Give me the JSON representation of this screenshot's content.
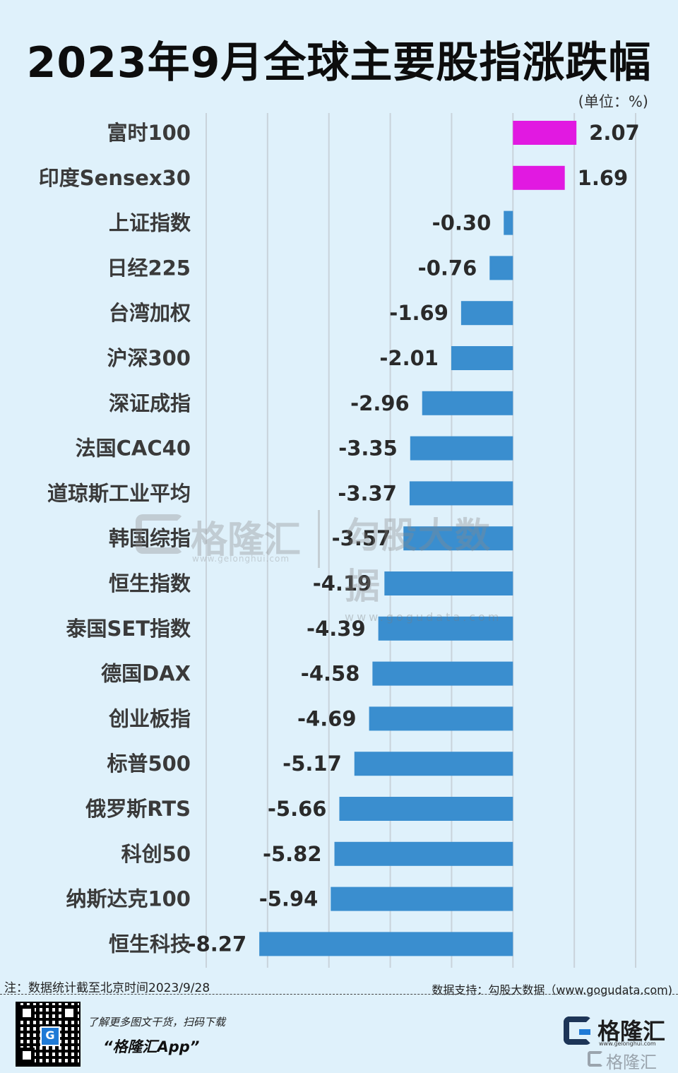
{
  "title": "2023年9月全球主要股指涨跌幅",
  "unit_label": "(单位：%)",
  "colors": {
    "positive": "#e119e1",
    "negative": "#3a8ecf",
    "background": "#dff1fb",
    "grid": "#c9d3db"
  },
  "chart_data": {
    "type": "bar",
    "orientation": "horizontal",
    "title": "2023年9月全球主要股指涨跌幅",
    "categories": [
      "富时100",
      "印度Sensex30",
      "上证指数",
      "日经225",
      "台湾加权",
      "沪深300",
      "深证成指",
      "法国CAC40",
      "道琼斯工业平均",
      "韩国综指",
      "恒生指数",
      "泰国SET指数",
      "德国DAX",
      "创业板指",
      "标普500",
      "俄罗斯RTS",
      "科创50",
      "纳斯达克100",
      "恒生科技"
    ],
    "values": [
      2.07,
      1.69,
      -0.3,
      -0.76,
      -1.69,
      -2.01,
      -2.96,
      -3.35,
      -3.37,
      -3.57,
      -4.19,
      -4.39,
      -4.58,
      -4.69,
      -5.17,
      -5.66,
      -5.82,
      -5.94,
      -8.27
    ],
    "value_labels": [
      "2.07",
      "1.69",
      "-0.30",
      "-0.76",
      "-1.69",
      "-2.01",
      "-2.96",
      "-3.35",
      "-3.37",
      "-3.57",
      "-4.19",
      "-4.39",
      "-4.58",
      "-4.69",
      "-5.17",
      "-5.66",
      "-5.82",
      "-5.94",
      "-8.27"
    ],
    "xlim": [
      -10,
      4
    ],
    "grid": true,
    "grid_values": [
      -10,
      -8,
      -6,
      -4,
      -2,
      0,
      2,
      4
    ]
  },
  "watermarks": {
    "left_name": "格隆汇",
    "left_url": "www.gelonghui.com",
    "right_name": "勾股大数据",
    "right_url": "www.gogudata.com"
  },
  "footer": {
    "note": "注：数据统计截至北京时间2023/9/28",
    "source": "数据支持：勾股大数据（www.gogudata.com)",
    "promo_line1": "了解更多图文干货，扫码下载",
    "promo_line2": "“格隆汇App”",
    "brand_name": "格隆汇",
    "brand_url": "www.gelonghui.com",
    "brand_secondary": "格隆汇",
    "qr_logo": "G"
  }
}
